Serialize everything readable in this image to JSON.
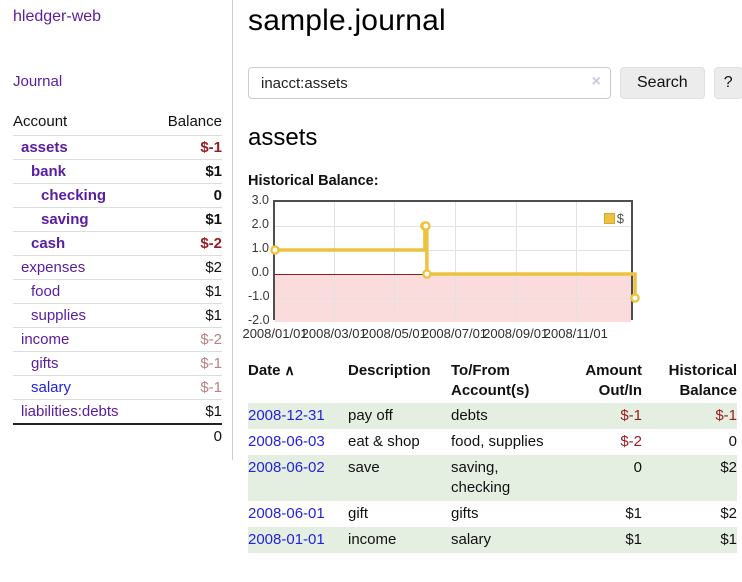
{
  "app": {
    "title": "hledger-web"
  },
  "colors": {
    "link_purple": "#5a1ca0",
    "link_blue": "#2222e0",
    "negative_strong": "#9a1c20",
    "negative_faded": "#bd7f80",
    "row_shade_green": "#e4efe1",
    "chart_line_yellow": "#edc240",
    "chart_negative_area_pink": "#fbdcdc",
    "chart_zero_line_red": "#8b1a1a"
  },
  "sidebar": {
    "journal_link": "Journal",
    "accounts_table": {
      "headers": {
        "account": "Account",
        "balance": "Balance"
      },
      "rows": [
        {
          "name": "assets",
          "balance": "$-1",
          "level": 1,
          "bold": true,
          "name_color": "purple",
          "balance_tone": "neg-strong"
        },
        {
          "name": "bank",
          "balance": "$1",
          "level": 2,
          "bold": true,
          "name_color": "purple",
          "balance_tone": "normal"
        },
        {
          "name": "checking",
          "balance": "0",
          "level": 3,
          "bold": true,
          "name_color": "purple",
          "balance_tone": "normal"
        },
        {
          "name": "saving",
          "balance": "$1",
          "level": 3,
          "bold": true,
          "name_color": "purple",
          "balance_tone": "normal"
        },
        {
          "name": "cash",
          "balance": "$-2",
          "level": 2,
          "bold": true,
          "name_color": "purple",
          "balance_tone": "neg-strong"
        },
        {
          "name": "expenses",
          "balance": "$2",
          "level": 1,
          "bold": false,
          "name_color": "purple",
          "balance_tone": "normal"
        },
        {
          "name": "food",
          "balance": "$1",
          "level": 2,
          "bold": false,
          "name_color": "purple",
          "balance_tone": "normal"
        },
        {
          "name": "supplies",
          "balance": "$1",
          "level": 2,
          "bold": false,
          "name_color": "purple",
          "balance_tone": "normal"
        },
        {
          "name": "income",
          "balance": "$-2",
          "level": 1,
          "bold": false,
          "name_color": "purple",
          "balance_tone": "neg-faded"
        },
        {
          "name": "gifts",
          "balance": "$-1",
          "level": 2,
          "bold": false,
          "name_color": "purple",
          "balance_tone": "neg-faded"
        },
        {
          "name": "salary",
          "balance": "$-1",
          "level": 2,
          "bold": false,
          "name_color": "blue",
          "balance_tone": "neg-faded"
        },
        {
          "name": "liabilities:debts",
          "balance": "$1",
          "level": 1,
          "bold": false,
          "name_color": "purple",
          "balance_tone": "normal"
        }
      ],
      "total": "0"
    }
  },
  "main": {
    "title": "sample.journal",
    "search": {
      "value": "inacct:assets",
      "clear_icon": "×",
      "search_label": "Search",
      "help_label": "?"
    },
    "account_heading": "assets",
    "chart": {
      "label": "Historical Balance:",
      "chart_data": {
        "type": "line",
        "style": "step-with-markers",
        "title": "Historical Balance",
        "legend": {
          "label": "$",
          "position": "top-right",
          "swatch_color": "#edc240"
        },
        "x_range": [
          "2008-01-01",
          "2008-12-31"
        ],
        "ylim": [
          -2,
          3
        ],
        "yticks": [
          3.0,
          2.0,
          1.0,
          0.0,
          -1.0,
          -2.0
        ],
        "ytick_labels": [
          "3.0",
          "2.0",
          "1.0",
          "0.0",
          "-1.0",
          "-2.0"
        ],
        "xticks": [
          {
            "date": "2008-01-01",
            "label": "2008/01/01"
          },
          {
            "date": "2008-03-01",
            "label": "2008/03/01"
          },
          {
            "date": "2008-05-01",
            "label": "2008/05/01"
          },
          {
            "date": "2008-07-01",
            "label": "2008/07/01"
          },
          {
            "date": "2008-09-01",
            "label": "2008/09/01"
          },
          {
            "date": "2008-11-01",
            "label": "2008/11/01"
          }
        ],
        "series": [
          {
            "name": "$",
            "points": [
              {
                "date": "2008-01-01",
                "value": 1
              },
              {
                "date": "2008-06-01",
                "value": 2
              },
              {
                "date": "2008-06-02",
                "value": 2
              },
              {
                "date": "2008-06-03",
                "value": 0
              },
              {
                "date": "2008-12-31",
                "value": -1
              }
            ]
          }
        ],
        "grid": true,
        "negative_region_shaded": true
      }
    },
    "register_table": {
      "headers": {
        "date": "Date",
        "sort_icon": "∧",
        "description": "Description",
        "tofrom": "To/From Account(s)",
        "amount": "Amount Out/In",
        "balance": "Historical Balance"
      },
      "rows": [
        {
          "date": "2008-12-31",
          "description": "pay off",
          "accounts": "debts",
          "amount": "$-1",
          "balance": "$-1",
          "amount_tone": "neg-strong",
          "balance_tone": "neg-strong",
          "shaded": true
        },
        {
          "date": "2008-06-03",
          "description": "eat & shop",
          "accounts": "food, supplies",
          "amount": "$-2",
          "balance": "0",
          "amount_tone": "neg-strong",
          "balance_tone": "normal",
          "shaded": false
        },
        {
          "date": "2008-06-02",
          "description": "save",
          "accounts": "saving, checking",
          "amount": "0",
          "balance": "$2",
          "amount_tone": "normal",
          "balance_tone": "normal",
          "shaded": true
        },
        {
          "date": "2008-06-01",
          "description": "gift",
          "accounts": "gifts",
          "amount": "$1",
          "balance": "$2",
          "amount_tone": "normal",
          "balance_tone": "normal",
          "shaded": false
        },
        {
          "date": "2008-01-01",
          "description": "income",
          "accounts": "salary",
          "amount": "$1",
          "balance": "$1",
          "amount_tone": "normal",
          "balance_tone": "normal",
          "shaded": true
        }
      ]
    }
  }
}
